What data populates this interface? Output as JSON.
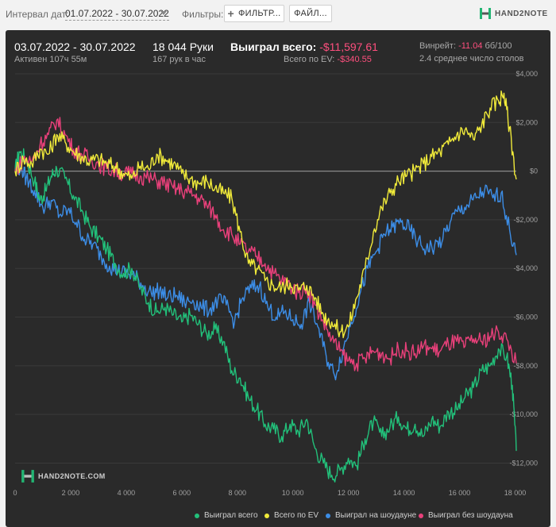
{
  "toolbar": {
    "date_label": "Интервал дат:",
    "date_range": "01.07.2022 - 30.07.2022",
    "filters_label": "Фильтры:",
    "filter_button": "ФИЛЬТР...",
    "file_button": "ФАЙЛ...",
    "brand": "HAND2NOTE"
  },
  "summary": {
    "period": "03.07.2022 - 30.07.2022",
    "active": "Активен 107ч 55м",
    "hands": "18 044 Руки",
    "hands_per_hour": "167 рук в час",
    "won_total_label": "Выиграл всего:",
    "won_total_value": "-$11,597.61",
    "ev_label": "Всего по EV:",
    "ev_value": "-$340.55",
    "winrate_label": "Винрейт:",
    "winrate_value": "-11.04",
    "winrate_unit": "бб/100",
    "tables": "2.4 среднее число столов"
  },
  "watermark": "HAND2NOTE.COM",
  "colors": {
    "won_total": "#22c07a",
    "ev": "#f0ea3a",
    "showdown": "#3c8de6",
    "non_showdown": "#e8407a",
    "zero_line": "#8a8a8a",
    "grid": "#3a3a3a"
  },
  "chart_data": {
    "type": "line",
    "title": "",
    "xlabel": "",
    "ylabel": "",
    "xlim": [
      0,
      18044
    ],
    "ylim": [
      -12800,
      4000
    ],
    "x_ticks": [
      0,
      2000,
      4000,
      6000,
      8000,
      10000,
      12000,
      14000,
      16000,
      18000
    ],
    "x_tick_labels": [
      "0",
      "2 000",
      "4 000",
      "6 000",
      "8 000",
      "10 000",
      "12 000",
      "14 000",
      "16 000",
      "18 000"
    ],
    "y_ticks": [
      4000,
      2000,
      0,
      -2000,
      -4000,
      -6000,
      -8000,
      -10000,
      -12000
    ],
    "y_tick_labels": [
      "$4,000",
      "$2,000",
      "$0",
      "-$2,000",
      "-$4,000",
      "-$6,000",
      "-$8,000",
      "-$10,000",
      "-$12,000"
    ],
    "legend": "bottom-right",
    "series": [
      {
        "name": "Выиграл всего",
        "color": "#22c07a",
        "x": [
          0,
          150,
          400,
          700,
          900,
          1100,
          1300,
          1500,
          1800,
          2100,
          2400,
          2700,
          3000,
          3300,
          3600,
          3900,
          4200,
          4500,
          4800,
          5100,
          5400,
          5700,
          6000,
          6300,
          6600,
          6900,
          7200,
          7500,
          7800,
          8100,
          8400,
          8700,
          9000,
          9300,
          9600,
          9900,
          10200,
          10500,
          10800,
          11100,
          11400,
          11700,
          12000,
          12300,
          12600,
          12900,
          13200,
          13500,
          13800,
          14100,
          14400,
          14700,
          15000,
          15300,
          15600,
          15900,
          16200,
          16500,
          16800,
          17100,
          17400,
          17700,
          17900,
          18044
        ],
        "values": [
          0,
          800,
          500,
          -400,
          -1200,
          -800,
          -200,
          100,
          -300,
          -1000,
          -1600,
          -2300,
          -2700,
          -3200,
          -3800,
          -4200,
          -4000,
          -4800,
          -5400,
          -5800,
          -5600,
          -5900,
          -6200,
          -5900,
          -6300,
          -6700,
          -6500,
          -7000,
          -8200,
          -8500,
          -9300,
          -9800,
          -10400,
          -10600,
          -10900,
          -10400,
          -10700,
          -10200,
          -11400,
          -12000,
          -12500,
          -12300,
          -11800,
          -12100,
          -11000,
          -10300,
          -10900,
          -10500,
          -10100,
          -10600,
          -10400,
          -10900,
          -10200,
          -10500,
          -9900,
          -9800,
          -9300,
          -8900,
          -8200,
          -8000,
          -7300,
          -7600,
          -8800,
          -11500
        ]
      },
      {
        "name": "Всего по EV",
        "color": "#f0ea3a",
        "x": [
          0,
          300,
          600,
          900,
          1200,
          1500,
          1800,
          2100,
          2400,
          2700,
          3000,
          3300,
          3600,
          3900,
          4200,
          4500,
          4800,
          5100,
          5400,
          5700,
          6000,
          6300,
          6600,
          6900,
          7200,
          7500,
          7800,
          8100,
          8400,
          8700,
          9000,
          9300,
          9600,
          9900,
          10200,
          10500,
          10800,
          11100,
          11400,
          11700,
          12000,
          12300,
          12600,
          12900,
          13200,
          13500,
          13800,
          14100,
          14400,
          14700,
          15000,
          15300,
          15600,
          15900,
          16200,
          16500,
          16800,
          17100,
          17400,
          17600,
          17800,
          18044
        ],
        "values": [
          0,
          500,
          300,
          900,
          700,
          1500,
          1200,
          800,
          600,
          400,
          500,
          300,
          200,
          -100,
          -300,
          200,
          100,
          700,
          500,
          300,
          -100,
          -300,
          -500,
          -400,
          -700,
          -900,
          -1100,
          -2500,
          -3800,
          -4000,
          -4500,
          -4700,
          -4800,
          -4600,
          -4900,
          -4700,
          -5200,
          -5900,
          -6200,
          -6600,
          -6400,
          -5200,
          -4000,
          -2500,
          -1500,
          -900,
          -400,
          -200,
          0,
          300,
          600,
          800,
          1100,
          1500,
          1700,
          1300,
          1900,
          2600,
          2900,
          3200,
          1800,
          -340
        ]
      },
      {
        "name": "Выиграл на шоудауне",
        "color": "#3c8de6",
        "x": [
          0,
          200,
          400,
          700,
          1000,
          1300,
          1600,
          1900,
          2200,
          2500,
          2800,
          3100,
          3400,
          3700,
          4000,
          4300,
          4600,
          4900,
          5200,
          5500,
          5800,
          6100,
          6400,
          6700,
          7000,
          7300,
          7600,
          7900,
          8200,
          8500,
          8800,
          9100,
          9400,
          9700,
          10000,
          10300,
          10600,
          10900,
          11200,
          11500,
          11800,
          12100,
          12400,
          12700,
          13000,
          13300,
          13600,
          13900,
          14200,
          14500,
          14800,
          15100,
          15400,
          15700,
          16000,
          16300,
          16600,
          16900,
          17200,
          17500,
          17800,
          18044
        ],
        "values": [
          0,
          200,
          -300,
          -800,
          -1500,
          -1200,
          -1800,
          -1600,
          -2100,
          -2800,
          -3000,
          -3500,
          -3900,
          -4100,
          -4200,
          -4300,
          -4700,
          -5000,
          -4900,
          -5200,
          -5100,
          -5400,
          -5300,
          -5600,
          -5700,
          -5300,
          -5500,
          -6200,
          -5200,
          -4800,
          -4700,
          -5600,
          -6000,
          -5800,
          -6100,
          -6300,
          -5400,
          -6400,
          -7600,
          -8400,
          -7400,
          -6200,
          -5100,
          -4000,
          -3300,
          -2600,
          -2300,
          -2100,
          -2400,
          -2900,
          -3200,
          -3100,
          -2800,
          -2000,
          -1600,
          -1400,
          -1100,
          -800,
          -1100,
          -900,
          -2400,
          -3450
        ]
      },
      {
        "name": "Выиграл без шоудауна",
        "color": "#e8407a",
        "x": [
          0,
          300,
          600,
          900,
          1200,
          1500,
          1800,
          2100,
          2400,
          2700,
          3000,
          3300,
          3600,
          3900,
          4200,
          4500,
          4800,
          5100,
          5400,
          5700,
          6000,
          6300,
          6600,
          6900,
          7200,
          7500,
          7800,
          8100,
          8400,
          8700,
          9000,
          9300,
          9600,
          9900,
          10200,
          10500,
          10800,
          11100,
          11400,
          11700,
          12000,
          12300,
          12600,
          12900,
          13200,
          13500,
          13800,
          14100,
          14400,
          14700,
          15000,
          15300,
          15600,
          15900,
          16200,
          16500,
          16800,
          17100,
          17400,
          17700,
          18044
        ],
        "values": [
          0,
          500,
          400,
          1100,
          1500,
          2100,
          1500,
          900,
          700,
          500,
          300,
          100,
          0,
          -100,
          -100,
          -200,
          -300,
          -400,
          -500,
          -700,
          -800,
          -900,
          -1100,
          -1400,
          -1800,
          -2400,
          -2600,
          -3000,
          -3300,
          -3500,
          -3800,
          -4200,
          -4500,
          -4700,
          -5000,
          -4800,
          -5500,
          -6200,
          -6900,
          -7400,
          -7800,
          -7900,
          -7700,
          -7400,
          -7500,
          -7700,
          -7300,
          -7400,
          -7500,
          -7200,
          -7300,
          -7400,
          -7100,
          -7000,
          -7200,
          -6900,
          -7000,
          -6800,
          -6600,
          -6900,
          -7900
        ]
      }
    ]
  }
}
